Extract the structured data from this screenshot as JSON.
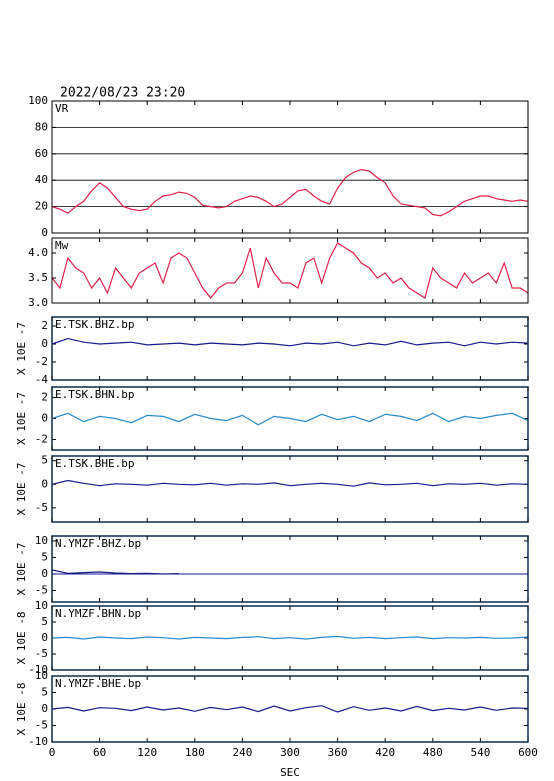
{
  "chart_data": [
    {
      "type": "line",
      "title": "2022/08/23 23:20",
      "label": "VR",
      "color": "#e0204a",
      "grid": true,
      "xlim": [
        0,
        600
      ],
      "ylim": [
        0,
        100
      ],
      "yticks": [
        0,
        20,
        40,
        60,
        80,
        100
      ],
      "x": [
        0,
        10,
        20,
        30,
        40,
        50,
        60,
        70,
        80,
        90,
        100,
        110,
        120,
        130,
        140,
        150,
        160,
        170,
        180,
        190,
        200,
        210,
        220,
        230,
        240,
        250,
        260,
        270,
        280,
        290,
        300,
        310,
        320,
        330,
        340,
        350,
        360,
        370,
        380,
        390,
        400,
        410,
        420,
        430,
        440,
        450,
        460,
        470,
        480,
        490,
        500,
        510,
        520,
        530,
        540,
        550,
        560,
        570,
        580,
        590,
        600
      ],
      "values": [
        20,
        18,
        15,
        20,
        24,
        32,
        38,
        34,
        27,
        20,
        18,
        17,
        18,
        24,
        28,
        29,
        31,
        30,
        27,
        21,
        20,
        19,
        20,
        24,
        26,
        28,
        27,
        24,
        20,
        22,
        27,
        32,
        33,
        28,
        24,
        22,
        34,
        42,
        46,
        48,
        47,
        42,
        38,
        28,
        22,
        21,
        20,
        19,
        14,
        13,
        16,
        20,
        24,
        26,
        28,
        28,
        26,
        25,
        24,
        25,
        24
      ]
    },
    {
      "type": "line",
      "label": "Mw",
      "color": "#e0204a",
      "xlim": [
        0,
        600
      ],
      "ylim": [
        3.0,
        4.3
      ],
      "yticks": [
        {
          "value": 3,
          "label": "3.0"
        },
        3.5,
        {
          "value": 4,
          "label": "4.0"
        }
      ],
      "x": [
        0,
        10,
        20,
        30,
        40,
        50,
        60,
        70,
        80,
        90,
        100,
        110,
        120,
        130,
        140,
        150,
        160,
        170,
        180,
        190,
        200,
        210,
        220,
        230,
        240,
        250,
        260,
        270,
        280,
        290,
        300,
        310,
        320,
        330,
        340,
        350,
        360,
        370,
        380,
        390,
        400,
        410,
        420,
        430,
        440,
        450,
        460,
        470,
        480,
        490,
        500,
        510,
        520,
        530,
        540,
        550,
        560,
        570,
        580,
        590,
        600
      ],
      "values": [
        3.5,
        3.3,
        3.9,
        3.7,
        3.6,
        3.3,
        3.5,
        3.2,
        3.7,
        3.5,
        3.3,
        3.6,
        3.7,
        3.8,
        3.4,
        3.9,
        4.0,
        3.9,
        3.6,
        3.3,
        3.1,
        3.3,
        3.4,
        3.4,
        3.6,
        4.1,
        3.3,
        3.9,
        3.6,
        3.4,
        3.4,
        3.3,
        3.8,
        3.9,
        3.4,
        3.9,
        4.2,
        4.1,
        4.0,
        3.8,
        3.7,
        3.5,
        3.6,
        3.4,
        3.5,
        3.3,
        3.2,
        3.1,
        3.7,
        3.5,
        3.4,
        3.3,
        3.6,
        3.4,
        3.5,
        3.6,
        3.4,
        3.8,
        3.3,
        3.3,
        3.2
      ]
    },
    {
      "type": "line",
      "label": "E.TSK.BHZ.bp",
      "ylabel": "X 10E -7",
      "color": "#1a1a8c",
      "xlim": [
        0,
        600
      ],
      "ylim": [
        -4,
        3
      ],
      "yticks": [
        2,
        0,
        -2,
        -4
      ],
      "x": [
        0,
        20,
        40,
        60,
        80,
        100,
        120,
        140,
        160,
        180,
        200,
        220,
        240,
        260,
        280,
        300,
        320,
        340,
        360,
        380,
        400,
        420,
        440,
        460,
        480,
        500,
        520,
        540,
        560,
        580,
        600
      ],
      "values": [
        0,
        0.6,
        0.2,
        0,
        0.1,
        0.2,
        -0.1,
        0,
        0.1,
        -0.1,
        0.1,
        0,
        -0.1,
        0.1,
        0,
        -0.2,
        0.1,
        0,
        0.2,
        -0.2,
        0.1,
        -0.1,
        0.3,
        -0.1,
        0.1,
        0.2,
        -0.2,
        0.2,
        0,
        0.2,
        0.1
      ]
    },
    {
      "type": "line",
      "label": "E.TSK.BHN.bp",
      "ylabel": "X 10E -7",
      "color": "#2a8ccc",
      "xlim": [
        0,
        600
      ],
      "ylim": [
        -3,
        3
      ],
      "yticks": [
        2,
        0,
        -2
      ],
      "x": [
        0,
        20,
        40,
        60,
        80,
        100,
        120,
        140,
        160,
        180,
        200,
        220,
        240,
        260,
        280,
        300,
        320,
        340,
        360,
        380,
        400,
        420,
        440,
        460,
        480,
        500,
        520,
        540,
        560,
        580,
        600
      ],
      "values": [
        0,
        0.5,
        -0.3,
        0.2,
        0,
        -0.4,
        0.3,
        0.2,
        -0.3,
        0.4,
        0,
        -0.2,
        0.3,
        -0.6,
        0.2,
        0,
        -0.3,
        0.4,
        -0.1,
        0.2,
        -0.3,
        0.4,
        0.2,
        -0.2,
        0.5,
        -0.3,
        0.2,
        0,
        0.3,
        0.5,
        -0.2
      ]
    },
    {
      "type": "line",
      "label": "E.TSK.BHE.bp",
      "ylabel": "X 10E -7",
      "color": "#1a1a8c",
      "xlim": [
        0,
        600
      ],
      "ylim": [
        -8,
        6
      ],
      "yticks": [
        5,
        0,
        -5
      ],
      "x": [
        0,
        20,
        40,
        60,
        80,
        100,
        120,
        140,
        160,
        180,
        200,
        220,
        240,
        260,
        280,
        300,
        320,
        340,
        360,
        380,
        400,
        420,
        440,
        460,
        480,
        500,
        520,
        540,
        560,
        580,
        600
      ],
      "values": [
        0,
        0.8,
        0.2,
        -0.3,
        0.1,
        0,
        -0.2,
        0.2,
        0,
        -0.1,
        0.2,
        -0.2,
        0.1,
        0,
        0.3,
        -0.3,
        0,
        0.2,
        0,
        -0.4,
        0.3,
        -0.1,
        0,
        0.2,
        -0.3,
        0.1,
        0,
        0.2,
        -0.2,
        0.1,
        0
      ]
    },
    {
      "type": "line",
      "label": "N.YMZF.BHZ.bp",
      "ylabel": "X 10E -7",
      "color": "#1a1a8c",
      "zero_line": true,
      "xlim": [
        0,
        600
      ],
      "ylim": [
        -8.5,
        11.5
      ],
      "yticks": [
        10,
        5,
        0,
        -5
      ],
      "x": [
        0,
        20,
        40,
        60,
        80,
        100,
        120,
        140,
        160,
        180,
        200,
        220,
        240,
        260,
        280,
        300,
        320,
        340,
        360,
        380,
        400,
        420,
        440,
        460,
        480,
        500,
        520,
        540,
        560,
        580,
        600
      ],
      "values": [
        1.2,
        0.2,
        0.4,
        0.6,
        0.3,
        0.1,
        0.2,
        0,
        0.1,
        null,
        null,
        null,
        null,
        null,
        null,
        null,
        null,
        null,
        null,
        null,
        null,
        null,
        null,
        null,
        null,
        null,
        null,
        null,
        null,
        null,
        null
      ]
    },
    {
      "type": "line",
      "label": "N.YMZF.BHN.bp",
      "ylabel": "X 10E -8",
      "color": "#2a8ccc",
      "xlim": [
        0,
        600
      ],
      "ylim": [
        -10,
        10
      ],
      "yticks": [
        10,
        5,
        0,
        -5,
        -10
      ],
      "x": [
        0,
        20,
        40,
        60,
        80,
        100,
        120,
        140,
        160,
        180,
        200,
        220,
        240,
        260,
        280,
        300,
        320,
        340,
        360,
        380,
        400,
        420,
        440,
        460,
        480,
        500,
        520,
        540,
        560,
        580,
        600
      ],
      "values": [
        0,
        0.2,
        -0.3,
        0.3,
        0,
        -0.2,
        0.3,
        0.1,
        -0.3,
        0.2,
        0,
        -0.2,
        0.2,
        0.4,
        -0.2,
        0.1,
        -0.3,
        0.2,
        0.5,
        -0.1,
        0.2,
        -0.2,
        0.1,
        0.3,
        -0.2,
        0.1,
        0,
        0.2,
        -0.1,
        0,
        0.3
      ]
    },
    {
      "type": "line",
      "label": "N.YMZF.BHE.bp",
      "ylabel": "X 10E -8",
      "color": "#1a1a8c",
      "xlabel": "SEC",
      "xlim": [
        0,
        600
      ],
      "xticks": [
        0,
        60,
        120,
        180,
        240,
        300,
        360,
        420,
        480,
        540,
        600
      ],
      "ylim": [
        -10,
        10
      ],
      "yticks": [
        10,
        5,
        0,
        -5,
        -10
      ],
      "x": [
        0,
        20,
        40,
        60,
        80,
        100,
        120,
        140,
        160,
        180,
        200,
        220,
        240,
        260,
        280,
        300,
        320,
        340,
        360,
        380,
        400,
        420,
        440,
        460,
        480,
        500,
        520,
        540,
        560,
        580,
        600
      ],
      "values": [
        0,
        0.5,
        -0.6,
        0.4,
        0.2,
        -0.5,
        0.6,
        -0.3,
        0.3,
        -0.7,
        0.5,
        -0.2,
        0.6,
        -0.8,
        0.9,
        -0.6,
        0.4,
        1.0,
        -0.9,
        0.7,
        -0.4,
        0.3,
        -0.6,
        0.8,
        -0.5,
        0.2,
        -0.3,
        0.6,
        -0.4,
        0.3,
        0.2
      ]
    }
  ]
}
